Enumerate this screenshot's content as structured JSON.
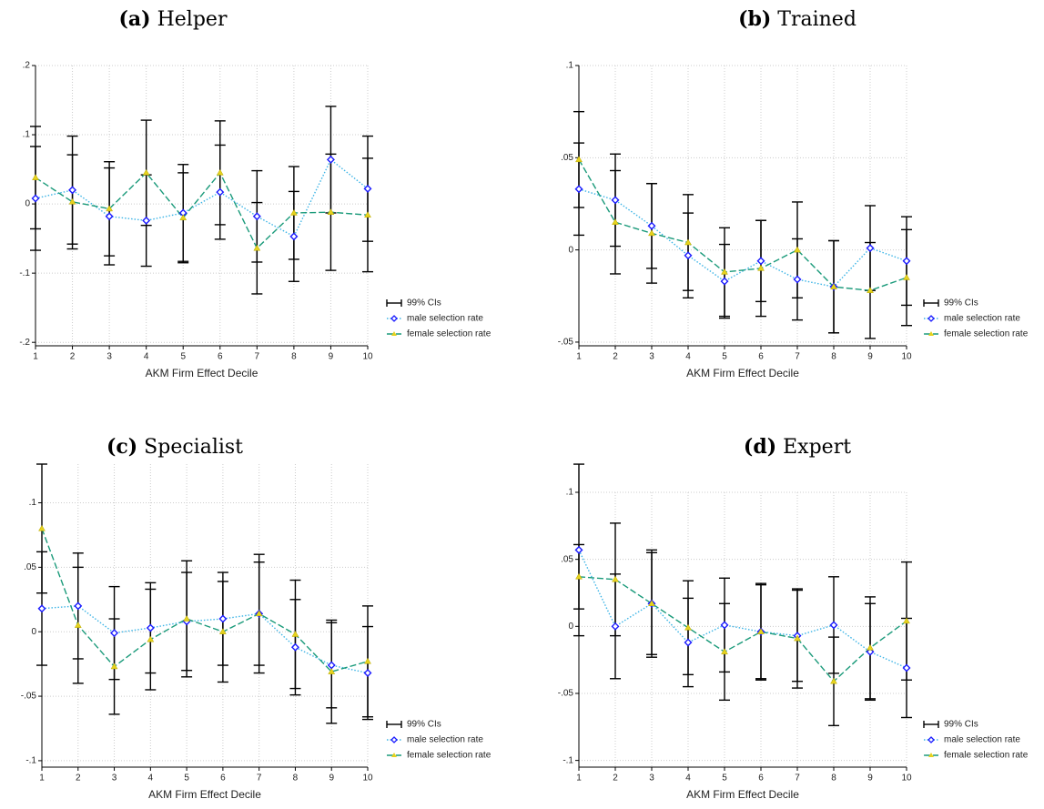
{
  "chart_data": [
    {
      "type": "line",
      "label": "(a)",
      "title": "Helper",
      "x_label": "AKM Firm Effect Decile",
      "ci_legend": "99% CIs",
      "x": [
        1,
        2,
        3,
        4,
        5,
        6,
        7,
        8,
        9,
        10
      ],
      "xlim": [
        1,
        10
      ],
      "xticks": [
        1,
        2,
        3,
        4,
        5,
        6,
        7,
        8,
        9,
        10
      ],
      "ylim": [
        -0.205,
        0.2
      ],
      "yticks": [
        {
          "value": -0.2,
          "label": "-.2"
        },
        {
          "value": -0.1,
          "label": "-.1"
        },
        0,
        {
          "value": 0.1,
          "label": ".1"
        },
        {
          "value": 0.2,
          "label": ".2"
        }
      ],
      "grid": true,
      "series": [
        {
          "name": "male selection rate",
          "color": "#3cb4e6",
          "marker_color": "#1a1aff",
          "marker": "diamond",
          "dash": "dotted",
          "values": [
            0.008,
            0.02,
            -0.018,
            -0.024,
            -0.013,
            0.017,
            -0.018,
            -0.047,
            0.064,
            0.022
          ],
          "errors": [
            0.075,
            0.078,
            0.07,
            0.066,
            0.07,
            0.068,
            0.066,
            0.065,
            0.077,
            0.076
          ]
        },
        {
          "name": "female selection rate",
          "color": "#1a9a7a",
          "marker_color": "#e6d21e",
          "marker": "triangle",
          "dash": "dashed",
          "values": [
            0.038,
            0.003,
            -0.007,
            0.045,
            -0.02,
            0.045,
            -0.064,
            -0.013,
            -0.012,
            -0.016
          ],
          "errors": [
            0.074,
            0.068,
            0.068,
            0.076,
            0.065,
            0.075,
            0.066,
            0.067,
            0.084,
            0.082
          ]
        }
      ]
    },
    {
      "type": "line",
      "label": "(b)",
      "title": "Trained",
      "x_label": "AKM Firm Effect Decile",
      "ci_legend": "99% CIs",
      "x": [
        1,
        2,
        3,
        4,
        5,
        6,
        7,
        8,
        9,
        10
      ],
      "xlim": [
        1,
        10
      ],
      "xticks": [
        1,
        2,
        3,
        4,
        5,
        6,
        7,
        8,
        9,
        10
      ],
      "ylim": [
        -0.052,
        0.1
      ],
      "yticks": [
        {
          "value": -0.05,
          "label": "-.05"
        },
        0,
        {
          "value": 0.05,
          "label": ".05"
        },
        {
          "value": 0.1,
          "label": ".1"
        }
      ],
      "grid": true,
      "series": [
        {
          "name": "male selection rate",
          "color": "#3cb4e6",
          "marker_color": "#1a1aff",
          "marker": "diamond",
          "dash": "dotted",
          "values": [
            0.033,
            0.027,
            0.013,
            -0.003,
            -0.017,
            -0.006,
            -0.016,
            -0.02,
            0.001,
            -0.006
          ],
          "errors": [
            0.025,
            0.025,
            0.023,
            0.023,
            0.02,
            0.022,
            0.022,
            0.025,
            0.023,
            0.024
          ]
        },
        {
          "name": "female selection rate",
          "color": "#1a9a7a",
          "marker_color": "#e6d21e",
          "marker": "triangle",
          "dash": "dashed",
          "values": [
            0.049,
            0.015,
            0.009,
            0.004,
            -0.012,
            -0.01,
            0,
            -0.02,
            -0.022,
            -0.015
          ],
          "errors": [
            0.026,
            0.028,
            0.027,
            0.026,
            0.024,
            0.026,
            0.026,
            0.025,
            0.026,
            0.026
          ]
        }
      ]
    },
    {
      "type": "line",
      "label": "(c)",
      "title": "Specialist",
      "x_label": "AKM Firm Effect Decile",
      "ci_legend": "99% CIs",
      "x": [
        1,
        2,
        3,
        4,
        5,
        6,
        7,
        8,
        9,
        10
      ],
      "xlim": [
        1,
        10
      ],
      "xticks": [
        1,
        2,
        3,
        4,
        5,
        6,
        7,
        8,
        9,
        10
      ],
      "ylim": [
        -0.105,
        0.13
      ],
      "yticks": [
        {
          "value": -0.1,
          "label": "-.1"
        },
        {
          "value": -0.05,
          "label": "-.05"
        },
        0,
        {
          "value": 0.05,
          "label": ".05"
        },
        {
          "value": 0.1,
          "label": ".1"
        }
      ],
      "grid": true,
      "series": [
        {
          "name": "male selection rate",
          "color": "#3cb4e6",
          "marker_color": "#1a1aff",
          "marker": "diamond",
          "dash": "dotted",
          "values": [
            0.018,
            0.02,
            -0.001,
            0.003,
            0.008,
            0.01,
            0.014,
            -0.012,
            -0.026,
            -0.032
          ],
          "errors": [
            0.044,
            0.041,
            0.036,
            0.035,
            0.038,
            0.036,
            0.04,
            0.037,
            0.033,
            0.036
          ]
        },
        {
          "name": "female selection rate",
          "color": "#1a9a7a",
          "marker_color": "#e6d21e",
          "marker": "triangle",
          "dash": "dashed",
          "values": [
            0.08,
            0.005,
            -0.027,
            -0.006,
            0.01,
            0,
            0.014,
            -0.002,
            -0.031,
            -0.023
          ],
          "errors": [
            0.05,
            0.045,
            0.037,
            0.039,
            0.045,
            0.039,
            0.046,
            0.042,
            0.04,
            0.043
          ]
        }
      ]
    },
    {
      "type": "line",
      "label": "(d)",
      "title": "Expert",
      "x_label": "AKM Firm Effect Decile",
      "ci_legend": "99% CIs",
      "x": [
        1,
        2,
        3,
        4,
        5,
        6,
        7,
        8,
        9,
        10
      ],
      "xlim": [
        1,
        10
      ],
      "xticks": [
        1,
        2,
        3,
        4,
        5,
        6,
        7,
        8,
        9,
        10
      ],
      "ylim": [
        -0.105,
        0.1
      ],
      "yticks": [
        {
          "value": -0.1,
          "label": "-.1"
        },
        {
          "value": -0.05,
          "label": "-.05"
        },
        0,
        {
          "value": 0.05,
          "label": ".05"
        },
        {
          "value": 0.1,
          "label": ".1"
        }
      ],
      "grid": true,
      "series": [
        {
          "name": "male selection rate",
          "color": "#3cb4e6",
          "marker_color": "#1a1aff",
          "marker": "diamond",
          "dash": "dotted",
          "values": [
            0.057,
            0,
            0.017,
            -0.012,
            0.001,
            -0.004,
            -0.007,
            0.001,
            -0.019,
            -0.031
          ],
          "errors": [
            0.064,
            0.039,
            0.04,
            0.033,
            0.035,
            0.036,
            0.034,
            0.036,
            0.036,
            0.037
          ]
        },
        {
          "name": "female selection rate",
          "color": "#1a9a7a",
          "marker_color": "#e6d21e",
          "marker": "triangle",
          "dash": "dashed",
          "values": [
            0.037,
            0.035,
            0.017,
            -0.001,
            -0.019,
            -0.004,
            -0.009,
            -0.041,
            -0.016,
            0.004
          ],
          "errors": [
            0.024,
            0.042,
            0.038,
            0.035,
            0.036,
            0.035,
            0.037,
            0.033,
            0.038,
            0.044
          ]
        }
      ]
    }
  ]
}
